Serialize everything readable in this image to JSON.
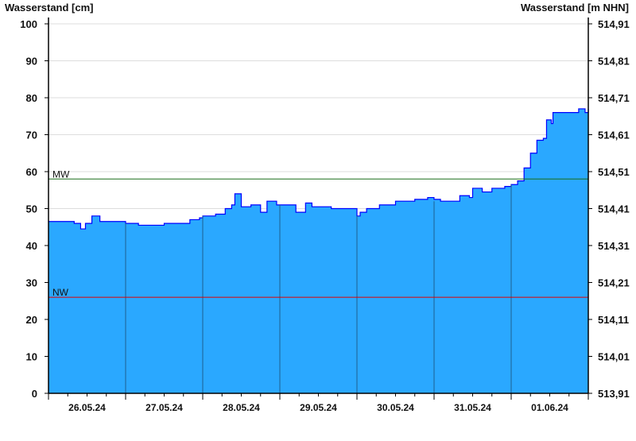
{
  "chart_data": {
    "type": "area",
    "ylabel_left": "Wasserstand [cm]",
    "ylabel_right": "Wasserstand [m NHN]",
    "ylim": [
      0,
      100
    ],
    "y_ticks": [
      0,
      10,
      20,
      30,
      40,
      50,
      60,
      70,
      80,
      90,
      100
    ],
    "right_ticks": [
      "513,91",
      "514,01",
      "514,11",
      "514,21",
      "514,31",
      "514,41",
      "514,51",
      "514,61",
      "514,71",
      "514,81",
      "514,91"
    ],
    "x_range": [
      "26.05.24 00:00",
      "02.06.24 00:00"
    ],
    "x_tick_labels": [
      "26.05.24",
      "27.05.24",
      "28.05.24",
      "29.05.24",
      "30.05.24",
      "31.05.24",
      "01.06.24"
    ],
    "grid": true,
    "reference_lines": [
      {
        "label": "MW",
        "value": 58,
        "color": "#1a6e1a"
      },
      {
        "label": "NW",
        "value": 26,
        "color": "#e00000"
      }
    ],
    "colors": {
      "fill": "#2aa8ff",
      "line": "#0000ff",
      "grid": "#dddddd",
      "day_lines": "#1f5f8f"
    },
    "points": [
      [
        "26.05.24 00:00",
        46.5
      ],
      [
        "26.05.24 06:00",
        46.5
      ],
      [
        "26.05.24 08:00",
        46
      ],
      [
        "26.05.24 10:00",
        44.5
      ],
      [
        "26.05.24 11:30",
        46
      ],
      [
        "26.05.24 13:30",
        48
      ],
      [
        "26.05.24 16:00",
        46.5
      ],
      [
        "26.05.24 23:59",
        46.5
      ],
      [
        "27.05.24 00:00",
        46
      ],
      [
        "27.05.24 04:00",
        45.5
      ],
      [
        "27.05.24 12:00",
        46
      ],
      [
        "27.05.24 18:00",
        46
      ],
      [
        "27.05.24 20:00",
        47
      ],
      [
        "27.05.24 23:00",
        47.5
      ],
      [
        "28.05.24 00:00",
        48
      ],
      [
        "28.05.24 04:00",
        48.5
      ],
      [
        "28.05.24 07:00",
        50
      ],
      [
        "28.05.24 09:00",
        51
      ],
      [
        "28.05.24 10:00",
        54
      ],
      [
        "28.05.24 12:00",
        50.5
      ],
      [
        "28.05.24 15:00",
        51
      ],
      [
        "28.05.24 18:00",
        49
      ],
      [
        "28.05.24 20:00",
        52
      ],
      [
        "28.05.24 23:00",
        51
      ],
      [
        "29.05.24 00:00",
        51
      ],
      [
        "29.05.24 05:00",
        49
      ],
      [
        "29.05.24 08:00",
        51.5
      ],
      [
        "29.05.24 10:00",
        50.5
      ],
      [
        "29.05.24 16:00",
        50
      ],
      [
        "29.05.24 23:00",
        50
      ],
      [
        "30.05.24 00:00",
        48
      ],
      [
        "30.05.24 01:00",
        49
      ],
      [
        "30.05.24 03:00",
        50
      ],
      [
        "30.05.24 07:00",
        51
      ],
      [
        "30.05.24 12:00",
        52
      ],
      [
        "30.05.24 18:00",
        52.5
      ],
      [
        "30.05.24 22:00",
        53
      ],
      [
        "30.05.24 23:59",
        52.5
      ],
      [
        "31.05.24 02:00",
        52
      ],
      [
        "31.05.24 07:00",
        52
      ],
      [
        "31.05.24 08:00",
        53.5
      ],
      [
        "31.05.24 11:00",
        53
      ],
      [
        "31.05.24 12:00",
        55.5
      ],
      [
        "31.05.24 15:00",
        54.5
      ],
      [
        "31.05.24 18:00",
        55.5
      ],
      [
        "31.05.24 22:00",
        56
      ],
      [
        "01.06.24 00:00",
        56.5
      ],
      [
        "01.06.24 02:00",
        57.5
      ],
      [
        "01.06.24 04:00",
        61
      ],
      [
        "01.06.24 06:00",
        65
      ],
      [
        "01.06.24 08:00",
        68.5
      ],
      [
        "01.06.24 10:00",
        69
      ],
      [
        "01.06.24 11:00",
        74
      ],
      [
        "01.06.24 12:30",
        73
      ],
      [
        "01.06.24 13:00",
        76
      ],
      [
        "01.06.24 16:00",
        76
      ],
      [
        "01.06.24 20:00",
        76
      ],
      [
        "01.06.24 21:00",
        77
      ],
      [
        "01.06.24 23:00",
        76
      ],
      [
        "02.06.24 00:00",
        77
      ]
    ]
  }
}
